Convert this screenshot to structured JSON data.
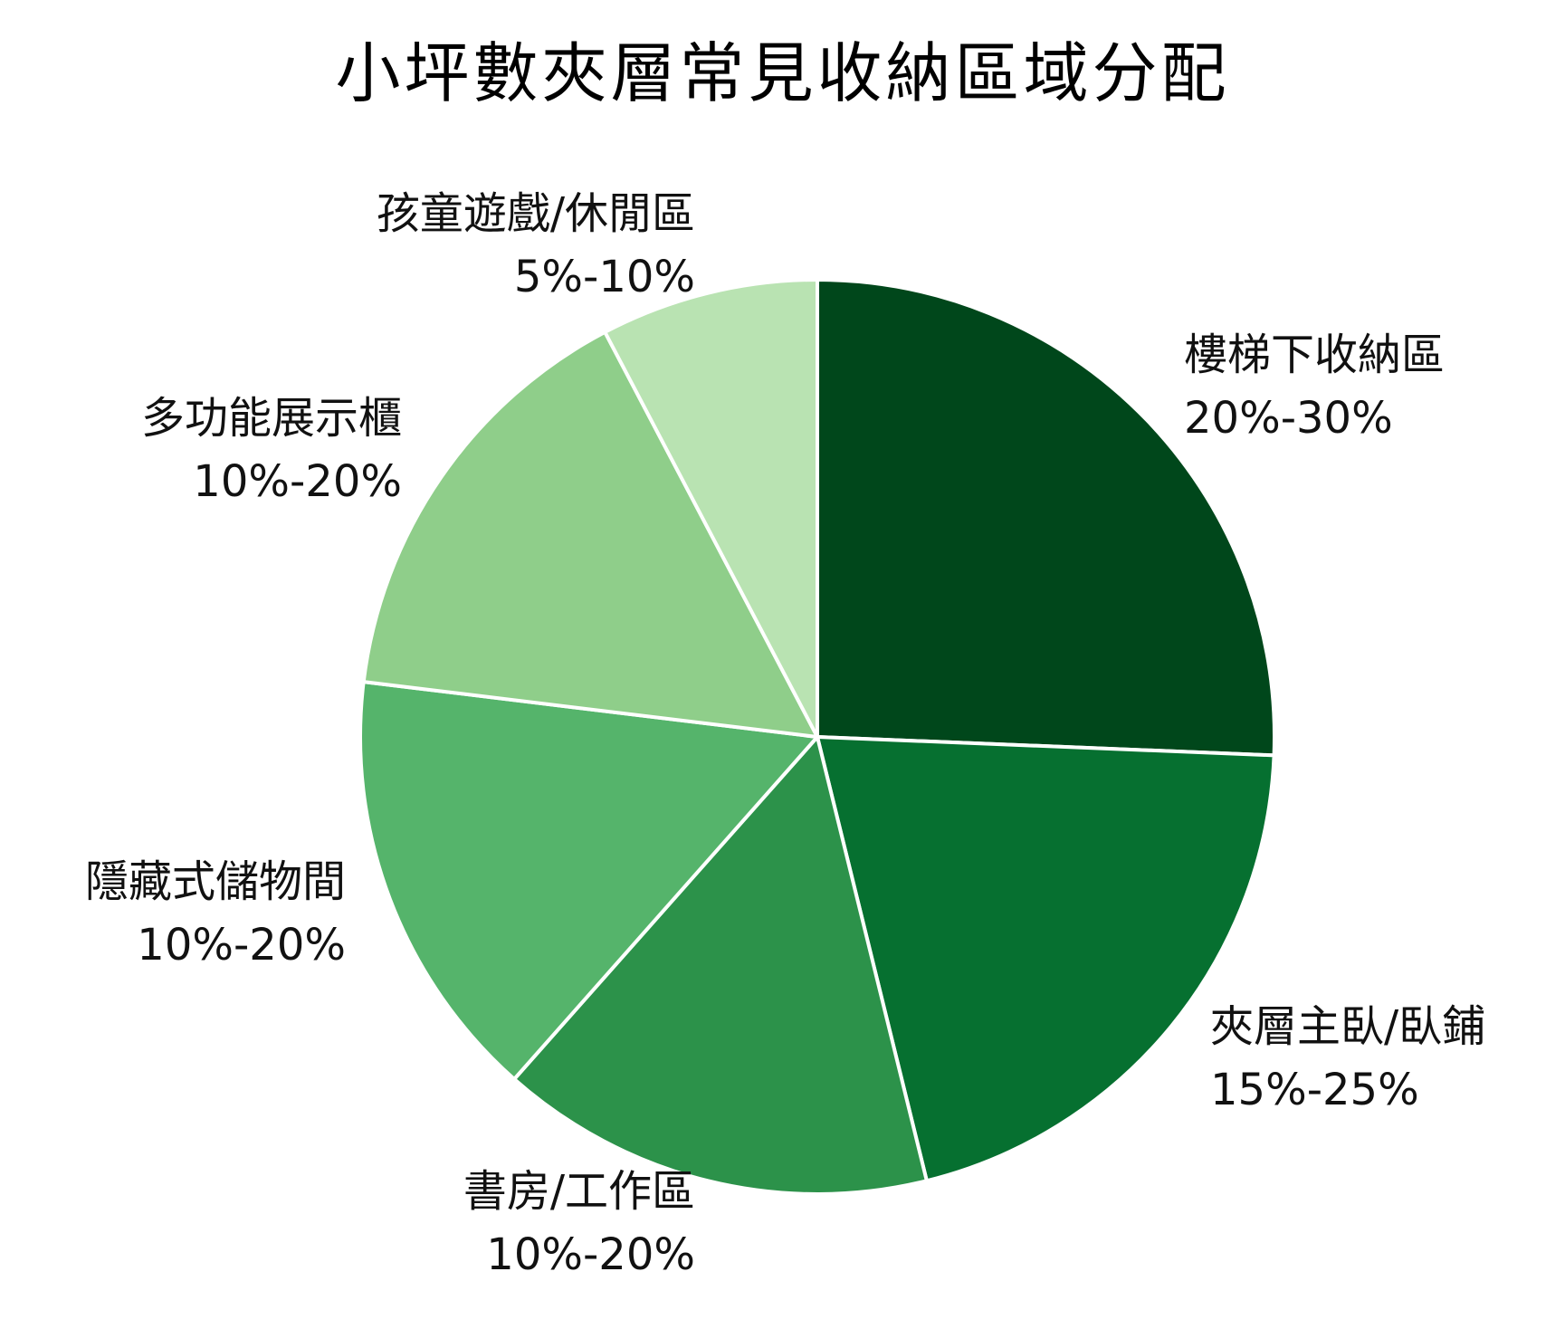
{
  "chart_data": {
    "type": "pie",
    "title": "小坪數夾層常見收納區域分配",
    "start_angle_deg": 0,
    "direction": "clockwise",
    "slices": [
      {
        "name": "樓梯下收納區",
        "range": "20%-30%",
        "value": 25,
        "color": "#00471b"
      },
      {
        "name": "夾層主臥/臥鋪",
        "range": "15%-25%",
        "value": 20,
        "color": "#067030"
      },
      {
        "name": "書房/工作區",
        "range": "10%-20%",
        "value": 15,
        "color": "#2c924a"
      },
      {
        "name": "隱藏式儲物間",
        "range": "10%-20%",
        "value": 15,
        "color": "#55b46b"
      },
      {
        "name": "多功能展示櫃",
        "range": "10%-20%",
        "value": 15,
        "color": "#8fce8a"
      },
      {
        "name": "孩童遊戲/休閒區",
        "range": "5%-10%",
        "value": 7.5,
        "color": "#b9e3b2"
      }
    ]
  }
}
